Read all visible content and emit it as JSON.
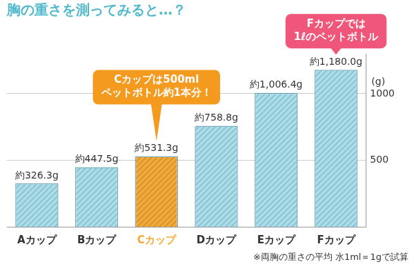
{
  "chart_data": {
    "type": "bar",
    "title": "胸の重さを測ってみると…？",
    "ylabel": "(g)",
    "categories": [
      "Aカップ",
      "Bカップ",
      "Cカップ",
      "Dカップ",
      "Eカップ",
      "Fカップ"
    ],
    "values": [
      326.3,
      447.5,
      531.3,
      758.8,
      1006.4,
      1180.0
    ],
    "value_labels": [
      "約326.3g",
      "約447.5g",
      "約531.3g",
      "約758.8g",
      "約1,006.4g",
      "約1,180.0g"
    ],
    "colors": [
      "#a9dde8",
      "#a9dde8",
      "#f7a833",
      "#a9dde8",
      "#a9dde8",
      "#a9dde8"
    ],
    "ylim": [
      0,
      1300
    ],
    "yticks": [
      500,
      1000
    ],
    "grid": true,
    "data_labels": true,
    "annotations": [
      {
        "category": "Cカップ",
        "text": [
          "Cカップは500ml",
          "ペットボトル約1本分！"
        ],
        "color": "#f39a1f"
      },
      {
        "category": "Fカップ",
        "text": [
          "Fカップでは",
          "1ℓのペットボトル"
        ],
        "color": "#f0567a"
      }
    ],
    "footnote": "※両胸の重さの平均 水1ml＝1gで試算"
  }
}
